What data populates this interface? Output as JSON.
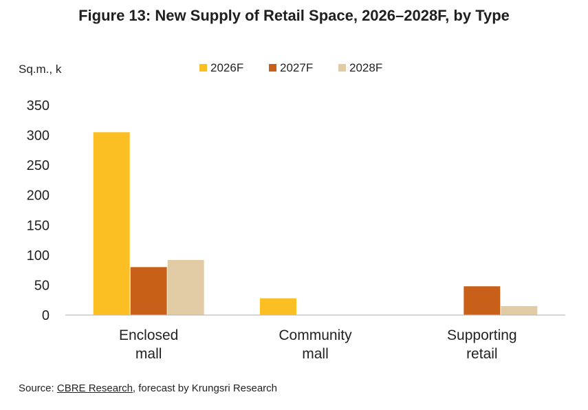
{
  "chart_data": {
    "type": "bar",
    "title": "Figure 13: New Supply of Retail Space, 2026–2028F, by Type",
    "ylabel": "Sq.m., k",
    "xlabel": "",
    "categories": [
      [
        "Enclosed",
        "mall"
      ],
      [
        "Community",
        "mall"
      ],
      [
        "Supporting",
        "retail"
      ]
    ],
    "series": [
      {
        "name": "2026F",
        "color": "#FBBF24",
        "values": [
          305,
          28,
          0
        ]
      },
      {
        "name": "2027F",
        "color": "#C8601A",
        "values": [
          80,
          0,
          48
        ]
      },
      {
        "name": "2028F",
        "color": "#E0CBA5",
        "values": [
          92,
          0,
          15
        ]
      }
    ],
    "ylim": [
      0,
      350
    ],
    "yticks": [
      0,
      50,
      100,
      150,
      200,
      250,
      300,
      350
    ],
    "grid": false,
    "legend_position": "top"
  },
  "source": {
    "prefix": "Source: ",
    "link_text": "CBRE Research",
    "suffix": ", forecast by Krungsri Research"
  }
}
